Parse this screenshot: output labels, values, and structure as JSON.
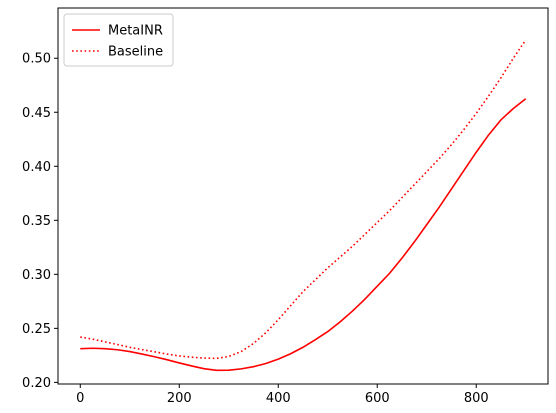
{
  "chart_data": {
    "type": "line",
    "title": "",
    "xlabel": "",
    "ylabel": "",
    "xlim": [
      -45,
      945
    ],
    "ylim": [
      0.1985,
      0.5465
    ],
    "xticks": [
      0,
      200,
      400,
      600,
      800
    ],
    "yticks": [
      0.2,
      0.25,
      0.3,
      0.35,
      0.4,
      0.45,
      0.5
    ],
    "xtick_labels": [
      "0",
      "200",
      "400",
      "600",
      "800"
    ],
    "ytick_labels": [
      "0.20",
      "0.25",
      "0.30",
      "0.35",
      "0.40",
      "0.45",
      "0.50"
    ],
    "grid": false,
    "legend_position": "upper-left",
    "series": [
      {
        "name": "MetaINR",
        "color": "#ff0000",
        "style": "solid",
        "x": [
          0,
          25,
          50,
          75,
          100,
          125,
          150,
          175,
          200,
          225,
          250,
          275,
          300,
          325,
          350,
          375,
          400,
          425,
          450,
          475,
          500,
          525,
          550,
          575,
          600,
          625,
          650,
          675,
          700,
          725,
          750,
          775,
          800,
          825,
          850,
          875,
          900
        ],
        "values": [
          0.2312,
          0.2316,
          0.2312,
          0.2302,
          0.2285,
          0.2262,
          0.2237,
          0.221,
          0.218,
          0.2152,
          0.2127,
          0.2112,
          0.2113,
          0.2125,
          0.2145,
          0.2175,
          0.2215,
          0.2265,
          0.2325,
          0.2395,
          0.247,
          0.256,
          0.266,
          0.277,
          0.289,
          0.301,
          0.315,
          0.33,
          0.346,
          0.362,
          0.379,
          0.396,
          0.413,
          0.429,
          0.443,
          0.4535,
          0.4625
        ]
      },
      {
        "name": "Baseline",
        "color": "#ff0000",
        "style": "dotted",
        "x": [
          0,
          25,
          50,
          75,
          100,
          125,
          150,
          175,
          200,
          225,
          250,
          275,
          300,
          325,
          350,
          375,
          400,
          425,
          450,
          475,
          500,
          525,
          550,
          575,
          600,
          625,
          650,
          675,
          700,
          725,
          750,
          775,
          800,
          825,
          850,
          875,
          900
        ],
        "values": [
          0.242,
          0.24,
          0.2375,
          0.235,
          0.2325,
          0.2303,
          0.2283,
          0.2262,
          0.2245,
          0.2233,
          0.2225,
          0.2222,
          0.224,
          0.2285,
          0.236,
          0.246,
          0.258,
          0.271,
          0.284,
          0.295,
          0.306,
          0.316,
          0.326,
          0.337,
          0.348,
          0.359,
          0.371,
          0.383,
          0.395,
          0.407,
          0.42,
          0.434,
          0.449,
          0.465,
          0.482,
          0.5,
          0.517
        ]
      }
    ]
  }
}
